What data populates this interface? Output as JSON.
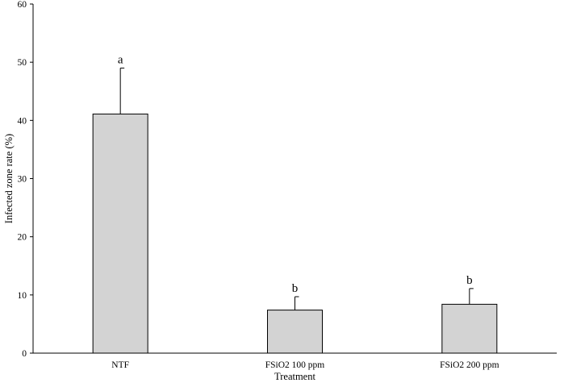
{
  "chart_data": {
    "type": "bar",
    "title": "",
    "xlabel": "Treatment",
    "ylabel": "Infected zone rate (%)",
    "ylim": [
      0,
      60
    ],
    "yticks": [
      0,
      10,
      20,
      30,
      40,
      50,
      60
    ],
    "grid": false,
    "legend": "none",
    "categories": [
      "NTF",
      "FSiO2 100 ppm",
      "FSiO2 200 ppm"
    ],
    "values": [
      41.1,
      7.4,
      8.4
    ],
    "error_upper": [
      7.9,
      2.3,
      2.7
    ],
    "significance_letters": [
      "a",
      "b",
      "b"
    ],
    "colors": {
      "bar_fill": "#d3d3d3",
      "bar_stroke": "#000000",
      "axis": "#000000",
      "error_bar": "#000000"
    }
  }
}
